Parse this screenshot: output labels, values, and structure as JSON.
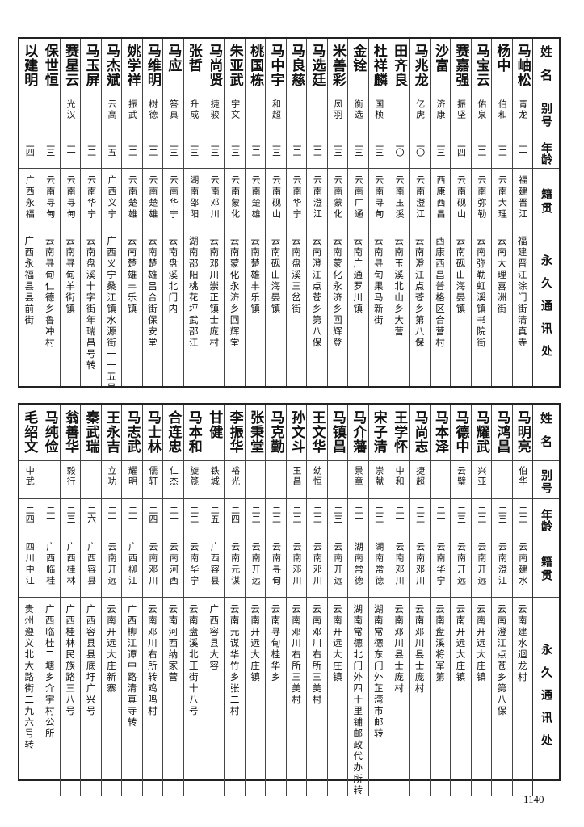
{
  "headers": {
    "name": "姓名",
    "alias": "别号",
    "age": "年龄",
    "origin": "籍贯",
    "address": "永久通讯处"
  },
  "table_top": [
    {
      "name": "马岫松",
      "alias": "青龙",
      "age": "二一",
      "origin": "福建晋江",
      "address": "福建晋江涂门街清真寺"
    },
    {
      "name": "杨中",
      "alias": "伯和",
      "age": "二二",
      "origin": "云南大理",
      "address": "云南大理喜洲街"
    },
    {
      "name": "马宝云",
      "alias": "佑泉",
      "age": "二二",
      "origin": "云南弥勒",
      "address": "云南弥勒虹溪镇书院街"
    },
    {
      "name": "赛嘉强",
      "alias": "振坚",
      "age": "二四",
      "origin": "云南砚山",
      "address": "云南砚山海晏镇"
    },
    {
      "name": "沙富",
      "alias": "济康",
      "age": "二三",
      "origin": "西康西昌",
      "address": "西康西昌普格区合营村"
    },
    {
      "name": "马兆龙",
      "alias": "亿虎",
      "age": "二〇",
      "origin": "云南澄江",
      "address": "云南澄江点苍乡第八保"
    },
    {
      "name": "田齐良",
      "alias": "",
      "age": "二〇",
      "origin": "云南玉溪",
      "address": "云南玉溪北山乡大营"
    },
    {
      "name": "杜祥麟",
      "alias": "国桢",
      "age": "二三",
      "origin": "云南寻甸",
      "address": "云南寻甸果马新街"
    },
    {
      "name": "金铨",
      "alias": "衡选",
      "age": "二三",
      "origin": "云南广通",
      "address": "云南广通罗川镇"
    },
    {
      "name": "米善彩",
      "alias": "凤羽",
      "age": "二三",
      "origin": "云南蒙化",
      "address": "云南蒙化永济乡回辉登"
    },
    {
      "name": "马选廷",
      "alias": "",
      "age": "二二",
      "origin": "云南澄江",
      "address": "云南澄江点苍乡第八保"
    },
    {
      "name": "马良慈",
      "alias": "",
      "age": "二二",
      "origin": "云南华宁",
      "address": "云南盘溪三岔街"
    },
    {
      "name": "马中宇",
      "alias": "和超",
      "age": "二三",
      "origin": "云南砚山",
      "address": "云南砚山海晏镇"
    },
    {
      "name": "桃国栋",
      "alias": "",
      "age": "二二",
      "origin": "云南楚雄",
      "address": "云南楚雄丰乐镇"
    },
    {
      "name": "朱亚武",
      "alias": "宇文",
      "age": "二三",
      "origin": "云南蒙化",
      "address": "云南蒙化永济乡回辉堂"
    },
    {
      "name": "马尚贤",
      "alias": "捷骏",
      "age": "二三",
      "origin": "云南邓川",
      "address": "云南邓川崇正镇士庞村"
    },
    {
      "name": "张哲",
      "alias": "升成",
      "age": "二三",
      "origin": "湖南邵阳",
      "address": "湖南邵阳桃花坪武邵江"
    },
    {
      "name": "马应",
      "alias": "答真",
      "age": "二三",
      "origin": "云南华宁",
      "address": "云南盘溪北门内"
    },
    {
      "name": "马维明",
      "alias": "树德",
      "age": "二二",
      "origin": "云南楚雄",
      "address": "云南楚雄吕合街保安堂"
    },
    {
      "name": "姚学祥",
      "alias": "振武",
      "age": "二二",
      "origin": "云南楚雄",
      "address": "云南楚雄丰乐镇"
    },
    {
      "name": "马杰斌",
      "alias": "云高",
      "age": "二五",
      "origin": "广西义宁",
      "address": "广西义宁桑江镇水源街一一五号"
    },
    {
      "name": "马玉屏",
      "alias": "",
      "age": "二二",
      "origin": "云南华宁",
      "address": "云南盘溪十字街年瑞昌号转"
    },
    {
      "name": "赛星云",
      "alias": "光汉",
      "age": "二一",
      "origin": "云南寻甸",
      "address": "云南寻甸羊街镇"
    },
    {
      "name": "保世恒",
      "alias": "",
      "age": "二三",
      "origin": "云南寻甸",
      "address": "云南寻甸仁德乡鲁冲村"
    },
    {
      "name": "以建明",
      "alias": "",
      "age": "二四",
      "origin": "广西永福",
      "address": "广西永福县县前街"
    }
  ],
  "table_bottom": [
    {
      "name": "马明亮",
      "alias": "伯华",
      "age": "二二",
      "origin": "云南建水",
      "address": "云南建水迴龙村"
    },
    {
      "name": "马鸿昌",
      "alias": "",
      "age": "二三",
      "origin": "云南澄江",
      "address": "云南澄江点苍乡第八保"
    },
    {
      "name": "马耀武",
      "alias": "兴亚",
      "age": "二二",
      "origin": "云南开远",
      "address": "云南开远大庄镇"
    },
    {
      "name": "马德中",
      "alias": "云璧",
      "age": "二三",
      "origin": "云南开远",
      "address": "云南开远大庄镇"
    },
    {
      "name": "马本泽",
      "alias": "",
      "age": "二一",
      "origin": "云南华宁",
      "address": "云南盘溪将军第"
    },
    {
      "name": "马尚志",
      "alias": "捷超",
      "age": "二二",
      "origin": "云南邓川",
      "address": "云南邓川县士庞村"
    },
    {
      "name": "王学怀",
      "alias": "中和",
      "age": "二一",
      "origin": "云南邓川",
      "address": "云南邓川县士庞村"
    },
    {
      "name": "宋子清",
      "alias": "崇献",
      "age": "二二",
      "origin": "湖南常德",
      "address": "湖南常德东门外芷湾市邮转"
    },
    {
      "name": "马介藩",
      "alias": "景章",
      "age": "二一",
      "origin": "湖南常德",
      "address": "湖南常德北门外四十里铺邮政代办所转"
    },
    {
      "name": "马镇昌",
      "alias": "",
      "age": "二三",
      "origin": "云南开远",
      "address": "云南开远大庄镇"
    },
    {
      "name": "王文华",
      "alias": "幼恒",
      "age": "二二",
      "origin": "云南邓川",
      "address": "云南邓川右所三美村"
    },
    {
      "name": "孙文斗",
      "alias": "玉昌",
      "age": "二二",
      "origin": "云南邓川",
      "address": "云南邓川右所三美村"
    },
    {
      "name": "马克勤",
      "alias": "",
      "age": "二二",
      "origin": "云南寻甸",
      "address": "云南寻甸桂华乡"
    },
    {
      "name": "张秉堂",
      "alias": "",
      "age": "二二",
      "origin": "云南开远",
      "address": "云南开远大庄镇"
    },
    {
      "name": "李振华",
      "alias": "裕光",
      "age": "二四",
      "origin": "云南元谋",
      "address": "云南元谋华竹乡张二村"
    },
    {
      "name": "甘健",
      "alias": "铁城",
      "age": "二五",
      "origin": "广西容县",
      "address": "广西容县大容"
    },
    {
      "name": "马本和",
      "alias": "旋篪",
      "age": "二二",
      "origin": "云南华宁",
      "address": "云南盘溪北正街十八号"
    },
    {
      "name": "合连忠",
      "alias": "仁杰",
      "age": "二一",
      "origin": "云南河西",
      "address": "云南河西纳家营"
    },
    {
      "name": "马士林",
      "alias": "儒轩",
      "age": "二四",
      "origin": "云南邓川",
      "address": "云南邓川右所转鸡鸣村"
    },
    {
      "name": "马志武",
      "alias": "耀明",
      "age": "二一",
      "origin": "广西柳江",
      "address": "广西柳江谭中路清真寺转"
    },
    {
      "name": "王永吉",
      "alias": "立功",
      "age": "二一",
      "origin": "云南开远",
      "address": "云南开远大庄新寨"
    },
    {
      "name": "秦武瑞",
      "alias": "",
      "age": "二六",
      "origin": "广西容县",
      "address": "广西容县县底圩广兴号"
    },
    {
      "name": "翁善华",
      "alias": "毅行",
      "age": "二三",
      "origin": "广西桂林",
      "address": "广西桂林民族路三八号"
    },
    {
      "name": "马纯俭",
      "alias": "",
      "age": "二一",
      "origin": "广西临桂",
      "address": "广西临桂二塘乡介宇村公所"
    },
    {
      "name": "毛绍文",
      "alias": "中武",
      "age": "二四",
      "origin": "四川中江",
      "address": "贵州遵义北大路街二九六号转"
    }
  ],
  "page_number": "1140"
}
